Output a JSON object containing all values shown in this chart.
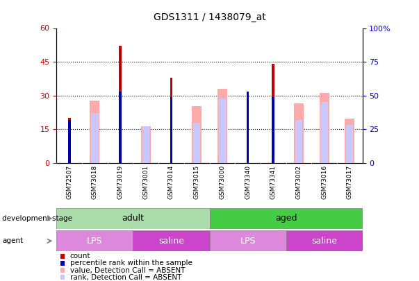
{
  "title": "GDS1311 / 1438079_at",
  "samples": [
    "GSM72507",
    "GSM73018",
    "GSM73019",
    "GSM73001",
    "GSM73014",
    "GSM73015",
    "GSM73000",
    "GSM73340",
    "GSM73341",
    "GSM73002",
    "GSM73016",
    "GSM73017"
  ],
  "count_values": [
    20,
    0,
    52,
    0,
    38,
    0,
    0,
    0,
    44,
    0,
    0,
    0
  ],
  "percentile_values": [
    32,
    0,
    53,
    0,
    49,
    0,
    0,
    53,
    49,
    0,
    0,
    0
  ],
  "absent_value_values": [
    0,
    46,
    0,
    27,
    0,
    42,
    55,
    0,
    0,
    44,
    52,
    33
  ],
  "absent_rank_values": [
    0,
    37,
    0,
    27,
    0,
    30,
    48,
    0,
    0,
    32,
    45,
    28
  ],
  "left_ylim": [
    0,
    60
  ],
  "right_ylim": [
    0,
    100
  ],
  "left_yticks": [
    0,
    15,
    30,
    45,
    60
  ],
  "right_yticks": [
    0,
    25,
    50,
    75,
    100
  ],
  "right_yticklabels": [
    "0",
    "25",
    "50",
    "75",
    "100%"
  ],
  "color_count": "#c00000",
  "color_percentile": "#0000aa",
  "color_absent_value": "#ffaaaa",
  "color_absent_rank": "#c8c8ff",
  "bg_color": "#ffffff",
  "tick_label_color_left": "#cc0000",
  "tick_label_color_right": "#0000cc",
  "xtick_bg": "#cccccc",
  "dev_adult_color": "#aaddaa",
  "dev_aged_color": "#44cc44",
  "agent_lps_color": "#dd88dd",
  "agent_saline_color": "#cc44cc",
  "legend_items": [
    {
      "label": "count",
      "color": "#c00000",
      "marker": "s"
    },
    {
      "label": "percentile rank within the sample",
      "color": "#0000aa",
      "marker": "s"
    },
    {
      "label": "value, Detection Call = ABSENT",
      "color": "#ffaaaa",
      "marker": "s"
    },
    {
      "label": "rank, Detection Call = ABSENT",
      "color": "#c8c8ff",
      "marker": "s"
    }
  ]
}
